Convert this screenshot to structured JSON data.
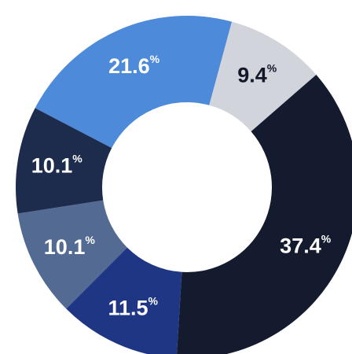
{
  "chart_data": {
    "type": "pie",
    "variant": "donut",
    "title": "",
    "legend": "none",
    "slices": [
      {
        "value": 21.6,
        "label": "21.6",
        "unit": "%",
        "color": "#4d8ad9",
        "label_color": "#ffffff"
      },
      {
        "value": 9.4,
        "label": "9.4",
        "unit": "%",
        "color": "#d2d4dc",
        "label_color": "#121829"
      },
      {
        "value": 37.4,
        "label": "37.4",
        "unit": "%",
        "color": "#151b2e",
        "label_color": "#ffffff"
      },
      {
        "value": 11.5,
        "label": "11.5",
        "unit": "%",
        "color": "#1e3684",
        "label_color": "#ffffff"
      },
      {
        "value": 10.1,
        "label": "10.1",
        "unit": "%",
        "color": "#536a92",
        "label_color": "#ffffff"
      },
      {
        "value": 10.1,
        "label": "10.1",
        "unit": "%",
        "color": "#1d2b4c",
        "label_color": "#ffffff"
      }
    ]
  }
}
